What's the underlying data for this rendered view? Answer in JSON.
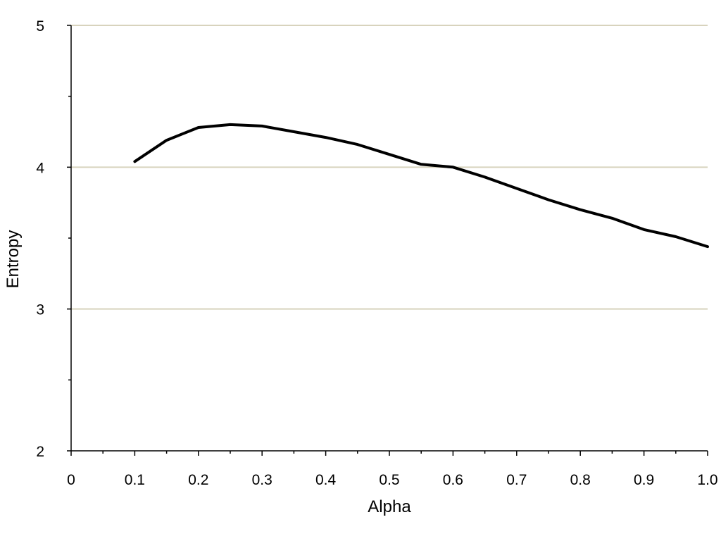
{
  "chart_data": {
    "type": "line",
    "xlabel": "Alpha",
    "ylabel": "Entropy",
    "xlim": [
      0,
      1.0
    ],
    "ylim": [
      2,
      5
    ],
    "x_ticks": [
      "0",
      "0.1",
      "0.2",
      "0.3",
      "0.4",
      "0.5",
      "0.6",
      "0.7",
      "0.8",
      "0.9",
      "1.0"
    ],
    "y_ticks": [
      "2",
      "3",
      "4",
      "5"
    ],
    "grid": true,
    "grid_color": "#d8d3bd",
    "line_color": "#000000",
    "legend": "none",
    "series": [
      {
        "x": [
          0.1,
          0.15,
          0.2,
          0.25,
          0.3,
          0.35,
          0.4,
          0.45,
          0.5,
          0.55,
          0.6,
          0.65,
          0.7,
          0.75,
          0.8,
          0.85,
          0.9,
          0.95,
          1.0
        ],
        "values": [
          4.04,
          4.19,
          4.28,
          4.3,
          4.29,
          4.25,
          4.21,
          4.16,
          4.09,
          4.02,
          4.0,
          3.93,
          3.85,
          3.77,
          3.7,
          3.64,
          3.56,
          3.51,
          3.44
        ]
      }
    ]
  }
}
